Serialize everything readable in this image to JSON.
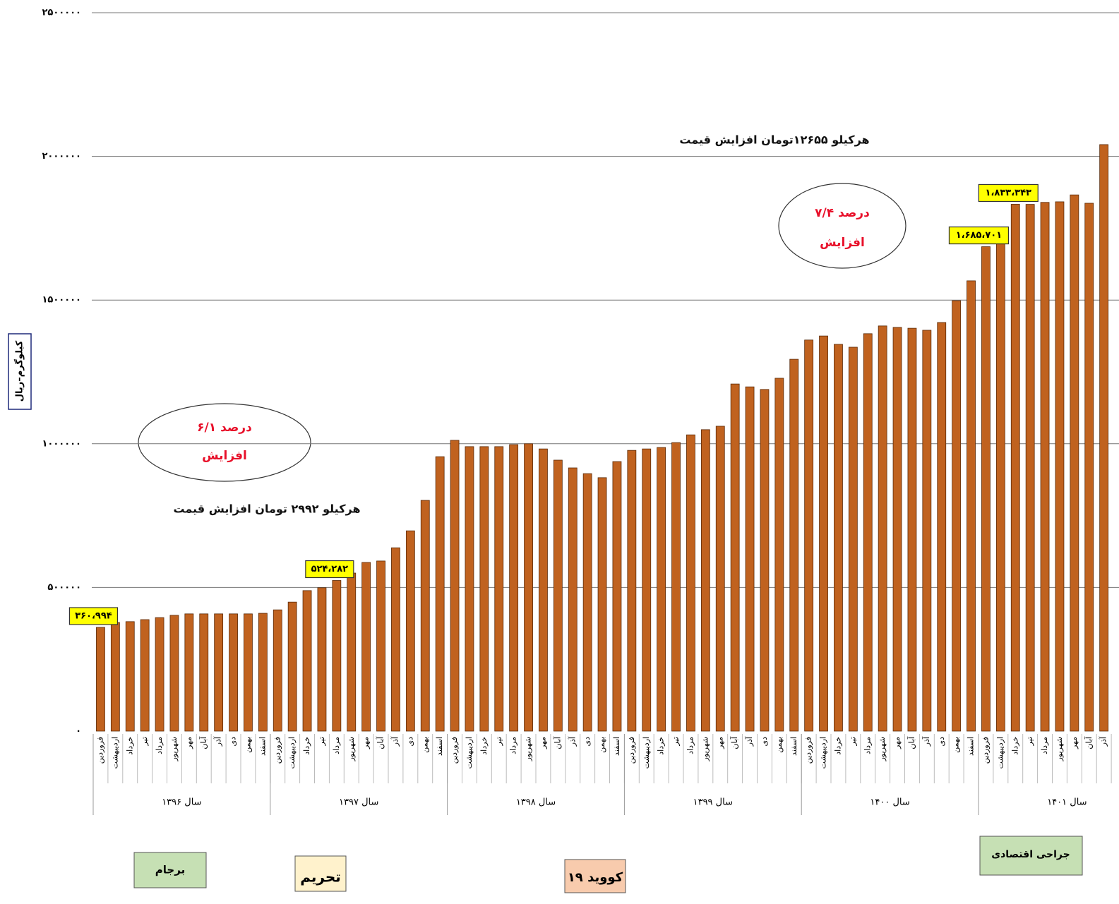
{
  "chart_data": {
    "type": "bar",
    "y_label": "کیلوگرم–ریال",
    "color": "#c0621f",
    "grid": true,
    "ylim": [
      0,
      2500000
    ],
    "yticks": [
      {
        "value": 0,
        "label": "۰"
      },
      {
        "value": 500000,
        "label": "۵۰۰۰۰۰"
      },
      {
        "value": 1000000,
        "label": "۱۰۰۰۰۰۰"
      },
      {
        "value": 1500000,
        "label": "۱۵۰۰۰۰۰"
      },
      {
        "value": 2000000,
        "label": "۲۰۰۰۰۰۰"
      },
      {
        "value": 2500000,
        "label": "۲۵۰۰۰۰۰"
      }
    ],
    "groups": [
      {
        "label": "سال ۱۳۹۶",
        "months": [
          "فروردین",
          "اردیبهشت",
          "خرداد",
          "تیر",
          "مرداد",
          "شهریور",
          "مهر",
          "آبان",
          "آذر",
          "دی",
          "بهمن",
          "اسفند"
        ]
      },
      {
        "label": "سال ۱۳۹۷",
        "months": [
          "فروردین",
          "اردیبهشت",
          "خرداد",
          "تیر",
          "مرداد",
          "شهریور",
          "مهر",
          "آبان",
          "آذر",
          "دی",
          "بهمن",
          "اسفند"
        ]
      },
      {
        "label": "سال ۱۳۹۸",
        "months": [
          "فروردین",
          "اردیبهشت",
          "خرداد",
          "تیر",
          "مرداد",
          "شهریور",
          "مهر",
          "آبان",
          "آذر",
          "دی",
          "بهمن",
          "اسفند"
        ]
      },
      {
        "label": "سال ۱۳۹۹",
        "months": [
          "فروردین",
          "اردیبهشت",
          "خرداد",
          "تیر",
          "مرداد",
          "شهریور",
          "مهر",
          "آبان",
          "آذر",
          "دی",
          "بهمن",
          "اسفند"
        ]
      },
      {
        "label": "سال ۱۴۰۰",
        "months": [
          "فروردین",
          "اردیبهشت",
          "خرداد",
          "تیر",
          "مرداد",
          "شهریور",
          "مهر",
          "آبان",
          "آذر",
          "دی",
          "بهمن",
          "اسفند"
        ]
      },
      {
        "label": "سال ۱۴۰۱",
        "months": [
          "فروردین",
          "اردیبهشت",
          "خرداد",
          "تیر",
          "مرداد",
          "شهریور",
          "مهر",
          "آبان",
          "آذر"
        ]
      }
    ],
    "values": [
      360994,
      378000,
      381000,
      388000,
      395000,
      403000,
      408000,
      408000,
      408000,
      408000,
      408000,
      410000,
      422000,
      449000,
      489000,
      499000,
      524282,
      550000,
      587000,
      592000,
      638000,
      697000,
      803000,
      955000,
      1012000,
      990000,
      990000,
      990000,
      997000,
      1000000,
      982000,
      943000,
      916000,
      896000,
      882000,
      938000,
      977000,
      982000,
      987000,
      1004000,
      1031000,
      1049000,
      1061000,
      1208000,
      1198000,
      1189000,
      1228000,
      1294000,
      1361000,
      1375000,
      1346000,
      1336000,
      1383000,
      1410000,
      1405000,
      1402000,
      1395000,
      1422000,
      1498000,
      1567000,
      1685701,
      1707000,
      1833343,
      1833000,
      1840000,
      1842000,
      1866000,
      1837000,
      2041000
    ],
    "value_labels": [
      "۳۶۰،۹۹۴",
      null,
      null,
      null,
      null,
      null,
      null,
      null,
      null,
      null,
      null,
      null,
      null,
      null,
      null,
      null,
      "۵۲۴،۲۸۲",
      null,
      null,
      null,
      null,
      null,
      null,
      null,
      null,
      null,
      null,
      null,
      null,
      null,
      null,
      null,
      null,
      null,
      null,
      null,
      null,
      null,
      null,
      null,
      null,
      null,
      null,
      null,
      null,
      null,
      null,
      null,
      null,
      null,
      null,
      null,
      null,
      null,
      null,
      null,
      null,
      null,
      null,
      null,
      "۱،۶۸۵،۷۰۱",
      null,
      "۱،۸۳۳،۳۴۳",
      null,
      null,
      null,
      null,
      null,
      null
    ],
    "annotations": {
      "top_note": "هرکیلو ۱۲۶۵۵تومان افزایش قیمت",
      "right_percent": "۷/۴ درصد",
      "right_word": "افزایش",
      "left_percent": "۶/۱ درصد",
      "left_word": "افزایش",
      "left_note": "هرکیلو ۲۹۹۲ تومان افزایش قیمت"
    },
    "events": [
      "برجام",
      "تحریم",
      "کووید ۱۹",
      "جراحی اقتصادی"
    ]
  }
}
